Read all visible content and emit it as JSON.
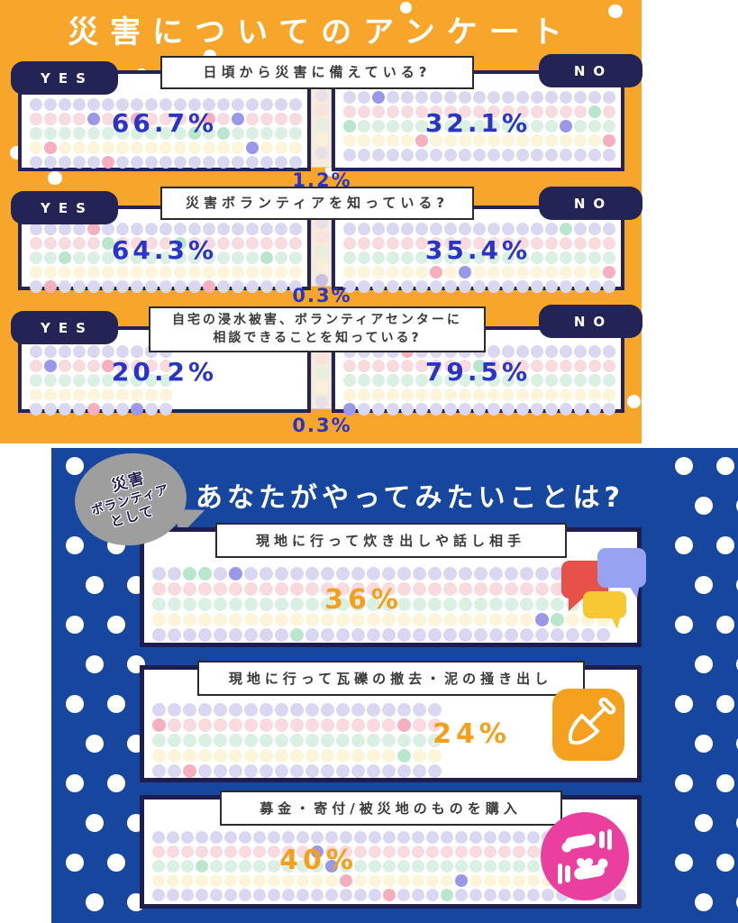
{
  "colors": {
    "orange_bg": "#F8A62B",
    "blue_bg": "#17469E",
    "navy": "#232356",
    "panel_border": "#1D1D4F",
    "question_text": "#3A3A3A",
    "pct_blue": "#2A35C6",
    "pct_orange": "#F5A01D",
    "bubble_gray": "#9E9E9E",
    "icon_chat_red": "#E8504A",
    "icon_chat_periwinkle": "#97A3F0",
    "icon_chat_yellow": "#F7C832",
    "icon_shovel_orange": "#F5A11F",
    "icon_heart_pink": "#EA3F9E"
  },
  "dot_rows": [
    "#DAD7F3",
    "#F9DADF",
    "#D9F0E2",
    "#FDF5D9",
    "#DAD7F3"
  ],
  "dot_accents": [
    "#9B98EA",
    "#F5AFBE",
    "#B9E6CD"
  ],
  "top": {
    "title": "災害についてのアンケート",
    "yes_label": "YES",
    "no_label": "NO",
    "questions": [
      {
        "question": "日頃から災害に備えている?",
        "yes_pct": "66.7%",
        "no_pct": "32.1%",
        "mid_pct": "1.2%"
      },
      {
        "question": "災害ボランティアを知っている?",
        "yes_pct": "64.3%",
        "no_pct": "35.4%",
        "mid_pct": "0.3%"
      },
      {
        "question_line1": "自宅の浸水被害、ボランティアセンターに",
        "question_line2": "相談できることを知っている?",
        "yes_pct": "20.2%",
        "no_pct": "79.5%",
        "mid_pct": "0.3%"
      }
    ]
  },
  "bottom": {
    "bubble": {
      "line1": "災害",
      "line2": "ボランティア",
      "line3": "として"
    },
    "title": "あなたがやってみたいことは?",
    "items": [
      {
        "label": "現地に行って炊き出しや話し相手",
        "pct": "36%",
        "icon": "chat-bubbles-icon"
      },
      {
        "label": "現地に行って瓦礫の撤去・泥の掻き出し",
        "pct": "24%",
        "icon": "shovel-icon"
      },
      {
        "label": "募金・寄付/被災地のものを購入",
        "pct": "40%",
        "icon": "heart-hands-icon"
      }
    ]
  },
  "chart_data": [
    {
      "type": "pictograph",
      "title": "災害についてのアンケート",
      "questions": [
        {
          "question": "日頃から災害に備えている?",
          "yes": 66.7,
          "no": 32.1,
          "other": 1.2
        },
        {
          "question": "災害ボランティアを知っている?",
          "yes": 64.3,
          "no": 35.4,
          "other": 0.3
        },
        {
          "question": "自宅の浸水被害、ボランティアセンターに相談できることを知っている?",
          "yes": 20.2,
          "no": 79.5,
          "other": 0.3
        }
      ],
      "unit": "%"
    },
    {
      "type": "pictograph",
      "title": "災害ボランティアとして あなたがやってみたいことは?",
      "categories": [
        "現地に行って炊き出しや話し相手",
        "現地に行って瓦礫の撤去・泥の掻き出し",
        "募金・寄付/被災地のものを購入"
      ],
      "values": [
        36,
        24,
        40
      ],
      "unit": "%"
    }
  ]
}
